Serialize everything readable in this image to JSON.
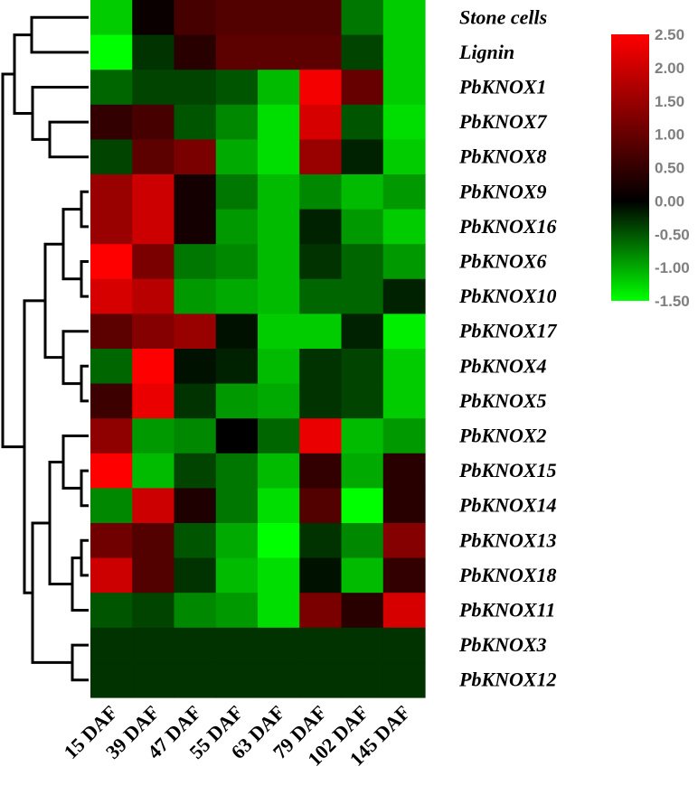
{
  "chart_data": {
    "type": "heatmap",
    "title": "",
    "xlabel": "",
    "ylabel": "",
    "columns": [
      "15 DAF",
      "39 DAF",
      "47 DAF",
      "55 DAF",
      "63 DAF",
      "79 DAF",
      "102 DAF",
      "145 DAF"
    ],
    "rows": [
      "Stone cells",
      "Lignin",
      "PbKNOX1",
      "PbKNOX7",
      "PbKNOX8",
      "PbKNOX9",
      "PbKNOX16",
      "PbKNOX6",
      "PbKNOX10",
      "PbKNOX17",
      "PbKNOX4",
      "PbKNOX5",
      "PbKNOX2",
      "PbKNOX15",
      "PbKNOX14",
      "PbKNOX13",
      "PbKNOX18",
      "PbKNOX11",
      "PbKNOX3",
      "PbKNOX12"
    ],
    "values": [
      [
        -1.2,
        0.1,
        0.7,
        0.8,
        0.8,
        0.8,
        -0.7,
        -1.2
      ],
      [
        -1.5,
        -0.3,
        0.4,
        0.9,
        0.9,
        0.9,
        -0.4,
        -1.2
      ],
      [
        -0.6,
        -0.4,
        -0.4,
        -0.5,
        -1.1,
        2.4,
        1.0,
        -1.2
      ],
      [
        0.5,
        0.7,
        -0.5,
        -0.8,
        -1.3,
        2.1,
        -0.5,
        -1.3
      ],
      [
        -0.4,
        0.9,
        1.2,
        -1.0,
        -1.3,
        1.5,
        -0.2,
        -1.2
      ],
      [
        1.5,
        2.0,
        0.2,
        -0.7,
        -1.1,
        -0.8,
        -1.1,
        -0.9
      ],
      [
        1.5,
        2.0,
        0.2,
        -0.9,
        -1.1,
        -0.2,
        -0.9,
        -1.2
      ],
      [
        2.5,
        1.2,
        -0.7,
        -0.8,
        -1.1,
        -0.3,
        -0.6,
        -0.9
      ],
      [
        2.1,
        1.8,
        -0.9,
        -1.0,
        -1.1,
        -0.6,
        -0.6,
        -0.2
      ],
      [
        0.9,
        1.3,
        1.5,
        -0.1,
        -1.2,
        -1.2,
        -0.2,
        -1.4
      ],
      [
        -0.6,
        2.6,
        -0.1,
        -0.2,
        -1.1,
        -0.3,
        -0.4,
        -1.2
      ],
      [
        0.6,
        2.3,
        -0.3,
        -0.9,
        -1.0,
        -0.3,
        -0.4,
        -1.2
      ],
      [
        1.4,
        -0.9,
        -0.8,
        0.0,
        -0.6,
        2.3,
        -1.1,
        -0.9
      ],
      [
        2.5,
        -1.1,
        -0.4,
        -0.7,
        -1.1,
        0.5,
        -1.0,
        0.4
      ],
      [
        -0.8,
        2.0,
        0.3,
        -0.7,
        -1.3,
        0.8,
        -1.5,
        0.4
      ],
      [
        1.1,
        0.8,
        -0.5,
        -1.0,
        -1.6,
        -0.3,
        -0.8,
        1.3
      ],
      [
        2.0,
        0.8,
        -0.3,
        -1.1,
        -1.3,
        -0.1,
        -1.1,
        0.5
      ],
      [
        -0.5,
        -0.4,
        -0.8,
        -0.9,
        -1.3,
        1.2,
        0.4,
        2.1
      ],
      [
        -0.3,
        -0.3,
        -0.3,
        -0.3,
        -0.3,
        -0.3,
        -0.3,
        -0.3
      ],
      [
        -0.3,
        -0.3,
        -0.3,
        -0.3,
        -0.3,
        -0.3,
        -0.3,
        -0.3
      ]
    ],
    "color_scale": {
      "min": -1.5,
      "mid": 0.0,
      "max": 2.5,
      "min_color": "#00ff00",
      "mid_color": "#000000",
      "max_color": "#ff0000"
    },
    "legend": {
      "position": "top-right",
      "ticks": [
        "2.50",
        "2.00",
        "1.50",
        "1.00",
        "0.50",
        "0.00",
        "-0.50",
        "-1.00",
        "-1.50"
      ]
    },
    "dendrogram": "rows"
  }
}
